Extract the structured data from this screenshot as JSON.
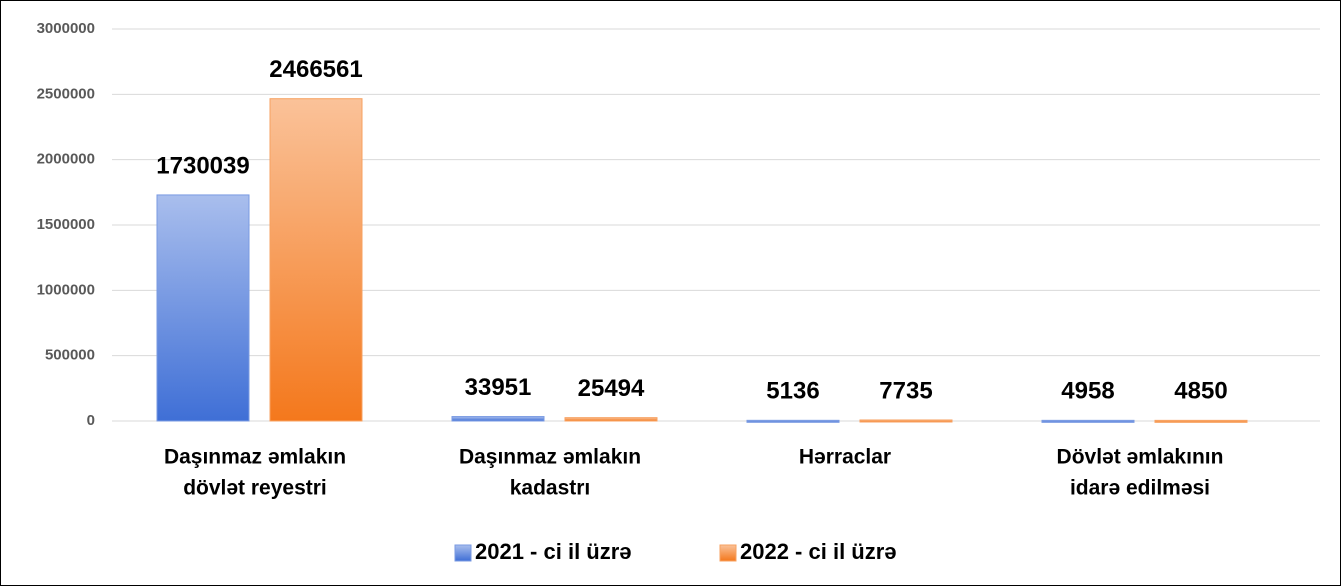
{
  "chart_data": {
    "type": "bar",
    "categories": [
      [
        "Daşınmaz əmlakın",
        "dövlət reyestri"
      ],
      [
        "Daşınmaz əmlakın",
        "kadastrı"
      ],
      [
        "Hərraclar"
      ],
      [
        "Dövlət əmlakının",
        "idarə edilməsi"
      ]
    ],
    "series": [
      {
        "name": "2021 - ci il üzrə",
        "color": "#3f6fd6",
        "values": [
          1730039,
          33951,
          5136,
          4958
        ]
      },
      {
        "name": "2022 - ci il üzrə",
        "color": "#f4781c",
        "values": [
          2466561,
          25494,
          7735,
          4850
        ]
      }
    ],
    "ylim": [
      0,
      3000000
    ],
    "yticks": [
      0,
      500000,
      1000000,
      1500000,
      2000000,
      2500000,
      3000000
    ],
    "grid": true,
    "legend": "bottom"
  }
}
